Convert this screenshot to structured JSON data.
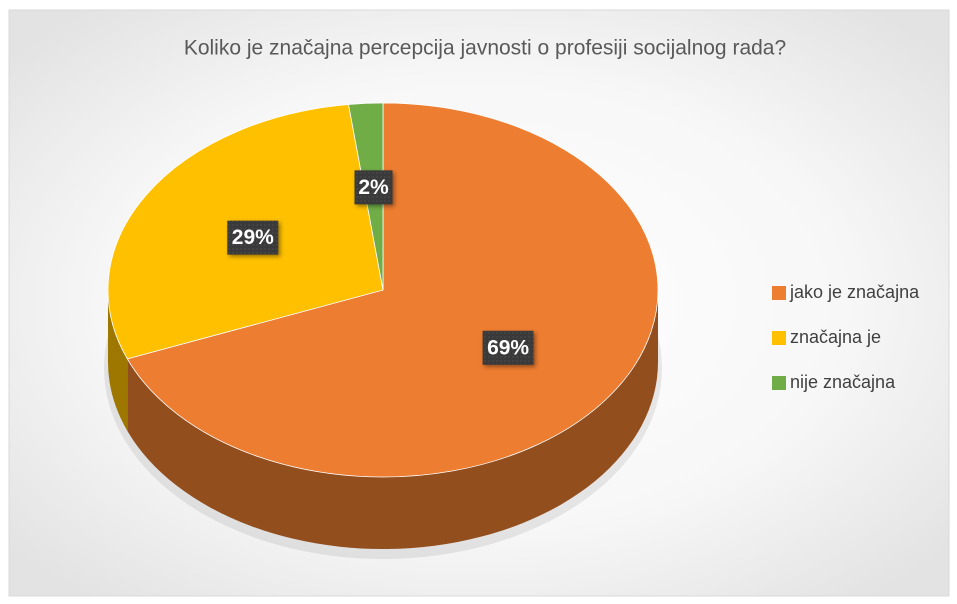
{
  "chart_data": {
    "type": "pie",
    "title": "Koliko je značajna percepcija javnosti o profesiji socijalnog rada?",
    "categories": [
      "jako je značajna",
      "značajna je",
      "nije značajna"
    ],
    "values": [
      69,
      29,
      2
    ],
    "value_labels": [
      "69%",
      "29%",
      "2%"
    ],
    "colors": [
      "#ED7D31",
      "#FFC000",
      "#70AD47"
    ],
    "legend": "right"
  }
}
